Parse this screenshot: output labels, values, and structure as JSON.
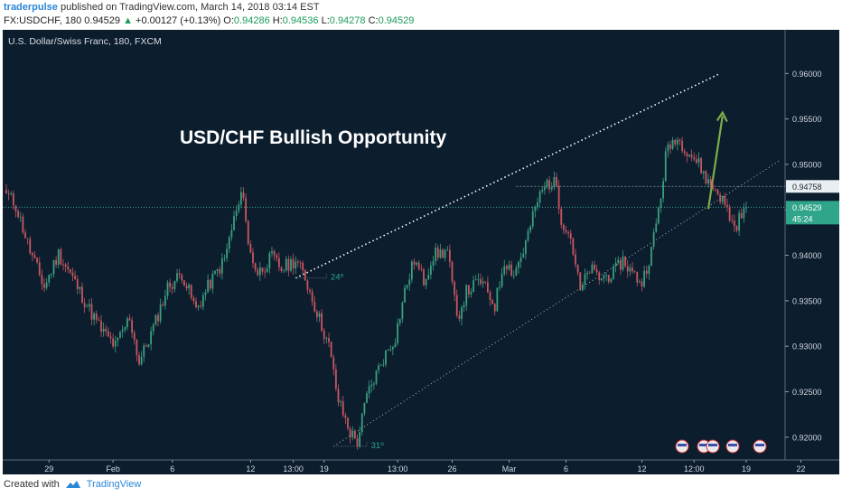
{
  "header": {
    "username": "traderpulse",
    "published_text": "published on TradingView.com, March 14, 2018 03:14 EST",
    "symbol": "FX:USDCHF, 180",
    "last": "0.94529",
    "change": "+0.00127 (+0.13%)",
    "o_label": "O:",
    "o_value": "0.94286",
    "h_label": "H:",
    "h_value": "0.94536",
    "l_label": "L:",
    "l_value": "0.94278",
    "c_label": "C:",
    "c_value": "0.94529"
  },
  "footer": {
    "created_with": "Created with",
    "brand": "TradingView"
  },
  "colors": {
    "bg": "#0c1d2e",
    "up": "#3aa07f",
    "down": "#c9565f",
    "accent": "#2a86d6"
  },
  "chart_data": {
    "type": "candlestick",
    "instrument_label": "U.S. Dollar/Swiss Franc, 180, FXCM",
    "title": "USD/CHF Bullish Opportunity",
    "x_ticks": [
      "29",
      "Feb",
      "6",
      "12",
      "13:00",
      "19",
      "13:00",
      "26",
      "Mar",
      "6",
      "12",
      "12:00",
      "19",
      "22"
    ],
    "y_ticks": [
      "0.96000",
      "0.95500",
      "0.95000",
      "0.94500",
      "0.94000",
      "0.93500",
      "0.93000",
      "0.92500",
      "0.92000"
    ],
    "ylim": [
      0.9175,
      0.9648
    ],
    "price_labels": [
      {
        "value": 0.94758,
        "text": "0.94758"
      },
      {
        "value": 0.94529,
        "text": "0.94529"
      }
    ],
    "countdown": "45:24",
    "annotations": [
      {
        "text": "24º",
        "note": "angle of upper channel line"
      },
      {
        "text": "31º",
        "note": "angle of lower channel line"
      }
    ],
    "trendlines": [
      {
        "name": "upper-channel",
        "from": [
          0.9375,
          0.9375
        ],
        "to": [
          0.96,
          0.96
        ]
      },
      {
        "name": "lower-channel",
        "from": [
          0.919,
          0.919
        ],
        "to": [
          0.9504,
          0.9504
        ]
      }
    ],
    "arrow_target": 0.9557,
    "waypoints": [
      [
        0,
        0.9468
      ],
      [
        4,
        0.9455
      ],
      [
        10,
        0.9405
      ],
      [
        16,
        0.9365
      ],
      [
        22,
        0.9402
      ],
      [
        28,
        0.9375
      ],
      [
        34,
        0.9345
      ],
      [
        40,
        0.9318
      ],
      [
        46,
        0.93
      ],
      [
        52,
        0.9332
      ],
      [
        56,
        0.9282
      ],
      [
        62,
        0.932
      ],
      [
        68,
        0.9365
      ],
      [
        74,
        0.938
      ],
      [
        80,
        0.934
      ],
      [
        86,
        0.937
      ],
      [
        92,
        0.9395
      ],
      [
        96,
        0.944
      ],
      [
        100,
        0.947
      ],
      [
        102,
        0.941
      ],
      [
        106,
        0.938
      ],
      [
        112,
        0.9398
      ],
      [
        116,
        0.9385
      ],
      [
        122,
        0.9395
      ],
      [
        126,
        0.9375
      ],
      [
        130,
        0.9345
      ],
      [
        136,
        0.93
      ],
      [
        140,
        0.924
      ],
      [
        145,
        0.9205
      ],
      [
        148,
        0.9195
      ],
      [
        152,
        0.9245
      ],
      [
        158,
        0.9282
      ],
      [
        164,
        0.931
      ],
      [
        168,
        0.936
      ],
      [
        172,
        0.9395
      ],
      [
        176,
        0.9372
      ],
      [
        180,
        0.94
      ],
      [
        186,
        0.9405
      ],
      [
        190,
        0.933
      ],
      [
        194,
        0.936
      ],
      [
        200,
        0.9372
      ],
      [
        206,
        0.9345
      ],
      [
        210,
        0.9395
      ],
      [
        214,
        0.938
      ],
      [
        218,
        0.9405
      ],
      [
        224,
        0.946
      ],
      [
        228,
        0.948
      ],
      [
        232,
        0.9478
      ],
      [
        234,
        0.944
      ],
      [
        238,
        0.942
      ],
      [
        242,
        0.936
      ],
      [
        246,
        0.9385
      ],
      [
        250,
        0.9375
      ],
      [
        256,
        0.938
      ],
      [
        260,
        0.9395
      ],
      [
        264,
        0.938
      ],
      [
        268,
        0.937
      ],
      [
        272,
        0.9405
      ],
      [
        276,
        0.9465
      ],
      [
        278,
        0.951
      ],
      [
        282,
        0.953
      ],
      [
        286,
        0.952
      ],
      [
        292,
        0.95
      ],
      [
        296,
        0.948
      ],
      [
        300,
        0.947
      ],
      [
        304,
        0.945
      ],
      [
        307,
        0.943
      ],
      [
        309,
        0.944
      ],
      [
        312,
        0.9453
      ]
    ]
  }
}
